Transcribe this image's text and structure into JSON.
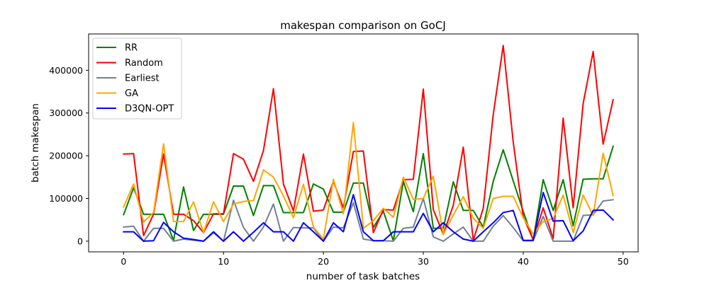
{
  "chart_data": {
    "type": "line",
    "title": "makespan comparison on GoCJ",
    "xlabel": "number of task batches",
    "ylabel": "batch makespan",
    "xlim": [
      -3.5,
      51.5
    ],
    "ylim": [
      -25000,
      485000
    ],
    "xticks": [
      0,
      10,
      20,
      30,
      40,
      50
    ],
    "yticks": [
      0,
      100000,
      200000,
      300000,
      400000
    ],
    "grid": false,
    "legend_position": "upper-left",
    "x": [
      0,
      1,
      2,
      3,
      4,
      5,
      6,
      7,
      8,
      9,
      10,
      11,
      12,
      13,
      14,
      15,
      16,
      17,
      18,
      19,
      20,
      21,
      22,
      23,
      24,
      25,
      26,
      27,
      28,
      29,
      30,
      31,
      32,
      33,
      34,
      35,
      36,
      37,
      38,
      39,
      40,
      41,
      42,
      43,
      44,
      45,
      46,
      47,
      48,
      49
    ],
    "series": [
      {
        "name": "RR",
        "color": "#008000",
        "values": [
          62000,
          125000,
          63000,
          63000,
          63000,
          2000,
          127000,
          25000,
          63000,
          63000,
          63000,
          129000,
          129000,
          60000,
          130000,
          130000,
          67000,
          67000,
          67000,
          134000,
          122000,
          68000,
          68000,
          136000,
          136000,
          32000,
          70000,
          1000,
          140000,
          69000,
          205000,
          30000,
          30000,
          139000,
          72000,
          72000,
          33000,
          140000,
          214000,
          141000,
          70000,
          2000,
          144000,
          72000,
          144000,
          36000,
          145000,
          146000,
          146000,
          222000
        ]
      },
      {
        "name": "Random",
        "color": "#ff0000",
        "values": [
          204000,
          205000,
          13000,
          63000,
          204000,
          63000,
          63000,
          48000,
          20000,
          64000,
          64000,
          205000,
          192000,
          140000,
          212000,
          357000,
          134000,
          71000,
          204000,
          70000,
          73000,
          140000,
          78000,
          210000,
          211000,
          20000,
          74000,
          73000,
          144000,
          145000,
          356000,
          74000,
          16000,
          84000,
          220000,
          2000,
          77000,
          296000,
          458000,
          232000,
          58000,
          3000,
          78000,
          6000,
          288000,
          78000,
          322000,
          444000,
          227000,
          331000
        ]
      },
      {
        "name": "Earliest",
        "color": "#708090",
        "values": [
          33000,
          35000,
          0,
          30000,
          30000,
          0,
          5000,
          2000,
          0,
          20000,
          0,
          96000,
          32000,
          0,
          33000,
          87000,
          0,
          32000,
          31000,
          31000,
          0,
          33000,
          31000,
          90000,
          5000,
          1000,
          1000,
          0,
          30000,
          33000,
          100000,
          10000,
          0,
          17000,
          33000,
          0,
          0,
          35000,
          60000,
          32000,
          1000,
          1000,
          58000,
          0,
          0,
          0,
          60000,
          62000,
          94000,
          97000
        ]
      },
      {
        "name": "GA",
        "color": "#ffa500",
        "values": [
          80000,
          134000,
          45000,
          67000,
          228000,
          46000,
          46000,
          92000,
          20000,
          92000,
          46000,
          87000,
          93000,
          95000,
          167000,
          150000,
          106000,
          55000,
          133000,
          33000,
          5000,
          145000,
          64000,
          278000,
          30000,
          48000,
          77000,
          56000,
          150000,
          98000,
          100000,
          152000,
          16000,
          61000,
          104000,
          54000,
          30000,
          100000,
          105000,
          105000,
          55000,
          17000,
          46000,
          53000,
          108000,
          20000,
          108000,
          60000,
          206000,
          107000
        ]
      },
      {
        "name": "D3QN-OPT",
        "color": "#0000ff",
        "values": [
          22000,
          22000,
          0,
          1000,
          44000,
          22000,
          7000,
          4000,
          0,
          22000,
          0,
          22000,
          0,
          21000,
          43000,
          22000,
          22000,
          0,
          43000,
          22000,
          0,
          43000,
          22000,
          109000,
          22000,
          1000,
          1000,
          22000,
          22000,
          22000,
          65000,
          22000,
          43000,
          22000,
          5000,
          0,
          22000,
          43000,
          67000,
          72000,
          2000,
          2000,
          114000,
          47000,
          48000,
          1000,
          24000,
          72000,
          73000,
          50000
        ]
      }
    ]
  }
}
